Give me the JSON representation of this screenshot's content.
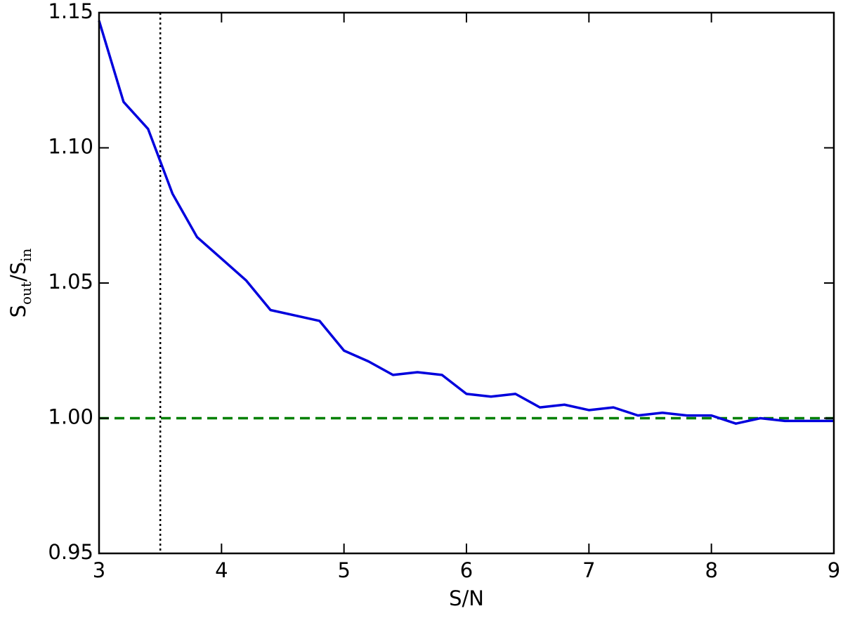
{
  "chart_data": {
    "type": "line",
    "xlabel": "S/N",
    "ylabel": [
      "S",
      "out",
      "/S",
      "in"
    ],
    "x": [
      3.0,
      3.2,
      3.4,
      3.6,
      3.8,
      4.0,
      4.2,
      4.4,
      4.6,
      4.8,
      5.0,
      5.2,
      5.4,
      5.6,
      5.8,
      6.0,
      6.2,
      6.4,
      6.6,
      6.8,
      7.0,
      7.2,
      7.4,
      7.6,
      7.8,
      8.0,
      8.2,
      8.4,
      8.6,
      8.8,
      9.0
    ],
    "series": [
      {
        "color": "#0000dd",
        "values": [
          1.147,
          1.117,
          1.107,
          1.083,
          1.067,
          1.059,
          1.051,
          1.04,
          1.038,
          1.036,
          1.025,
          1.021,
          1.016,
          1.017,
          1.016,
          1.009,
          1.008,
          1.009,
          1.004,
          1.005,
          1.003,
          1.004,
          1.001,
          1.002,
          1.001,
          1.001,
          0.998,
          1.0,
          0.999,
          0.999,
          0.999
        ]
      }
    ],
    "hlines": [
      {
        "value": 1.0,
        "color": "#008000",
        "style": "dashed"
      }
    ],
    "vlines": [
      {
        "value": 3.5,
        "color": "#000000",
        "style": "dotted"
      }
    ],
    "xlim": [
      3,
      9
    ],
    "xticks": [
      3,
      4,
      5,
      6,
      7,
      8,
      9
    ],
    "ylim": [
      0.95,
      1.15
    ],
    "yticks": [
      0.95,
      {
        "value": 1.0,
        "label": "1.00"
      },
      1.05,
      {
        "value": 1.1,
        "label": "1.10"
      },
      1.15
    ]
  }
}
